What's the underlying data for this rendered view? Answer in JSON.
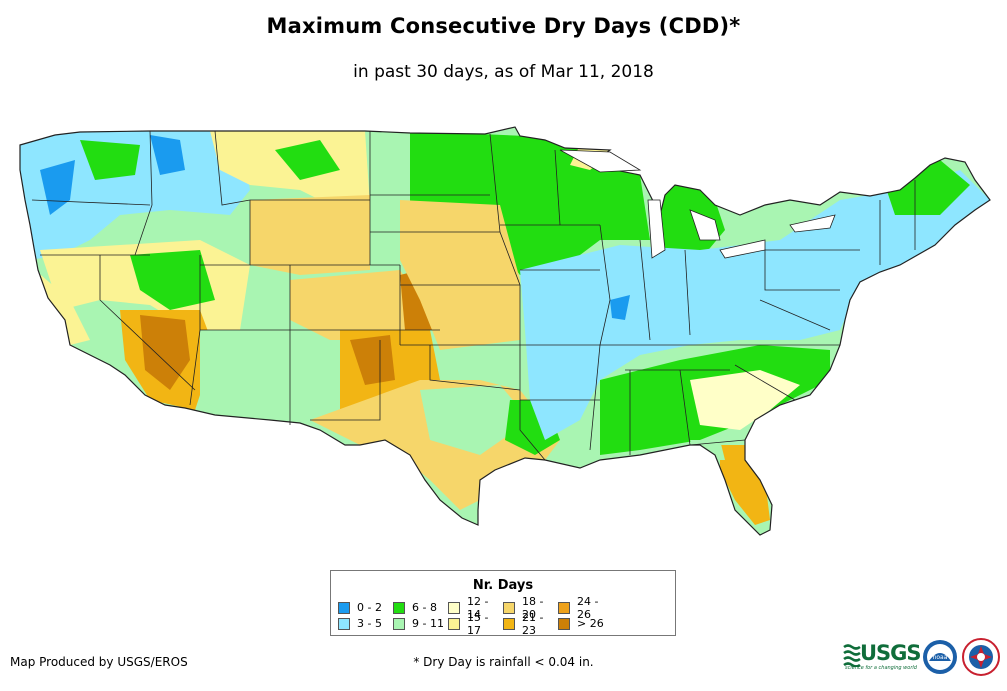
{
  "title": "Maximum Consecutive Dry Days (CDD)*",
  "subtitle": "in past 30 days, as of Mar 11, 2018",
  "legend": {
    "title": "Nr. Days",
    "items": [
      {
        "label": "0 - 2",
        "color": "#1a9bef"
      },
      {
        "label": "6 - 8",
        "color": "#22dd11"
      },
      {
        "label": "12 - 14",
        "color": "#ffffc8"
      },
      {
        "label": "18 - 20",
        "color": "#f6d66a"
      },
      {
        "label": "24 - 26",
        "color": "#eea21c"
      },
      {
        "label": "3 - 5",
        "color": "#8ee6ff"
      },
      {
        "label": "9 - 11",
        "color": "#a9f5b2"
      },
      {
        "label": "15 - 17",
        "color": "#fbf394"
      },
      {
        "label": "21 - 23",
        "color": "#f2b514"
      },
      {
        "label": "> 26",
        "color": "#cc8008"
      }
    ]
  },
  "footer": {
    "credit": "Map Produced by USGS/EROS",
    "footnote": "* Dry Day is rainfall < 0.04 in."
  },
  "logos": {
    "usgs_text": "USGS",
    "usgs_tagline": "science for a changing world",
    "noaa_text": "noaa"
  },
  "colors": {
    "ocean": "#ffffff",
    "border": "#222222"
  }
}
